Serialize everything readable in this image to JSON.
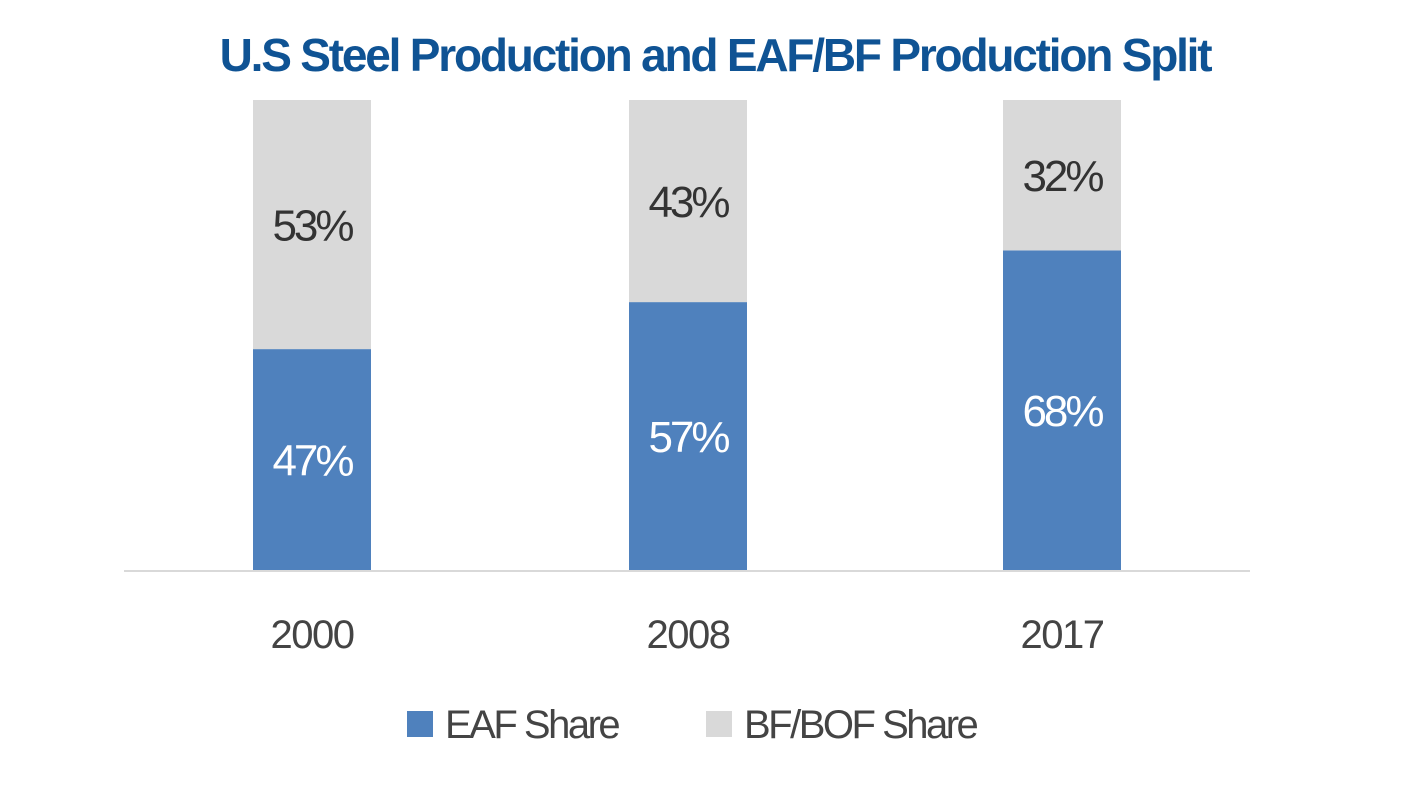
{
  "chart_data": {
    "type": "bar",
    "stacked": true,
    "title": "U.S Steel Production and EAF/BF Production Split",
    "categories": [
      "2000",
      "2008",
      "2017"
    ],
    "series": [
      {
        "name": "EAF Share",
        "values": [
          47,
          57,
          68
        ],
        "labels": [
          "47%",
          "57%",
          "68%"
        ],
        "color": "#4f81bd"
      },
      {
        "name": "BF/BOF Share",
        "values": [
          53,
          43,
          32
        ],
        "labels": [
          "53%",
          "43%",
          "32%"
        ],
        "color": "#d9d9d9"
      }
    ],
    "xlabel": "",
    "ylabel": "",
    "ylim": [
      0,
      100
    ],
    "grid": false,
    "legend_position": "bottom"
  }
}
